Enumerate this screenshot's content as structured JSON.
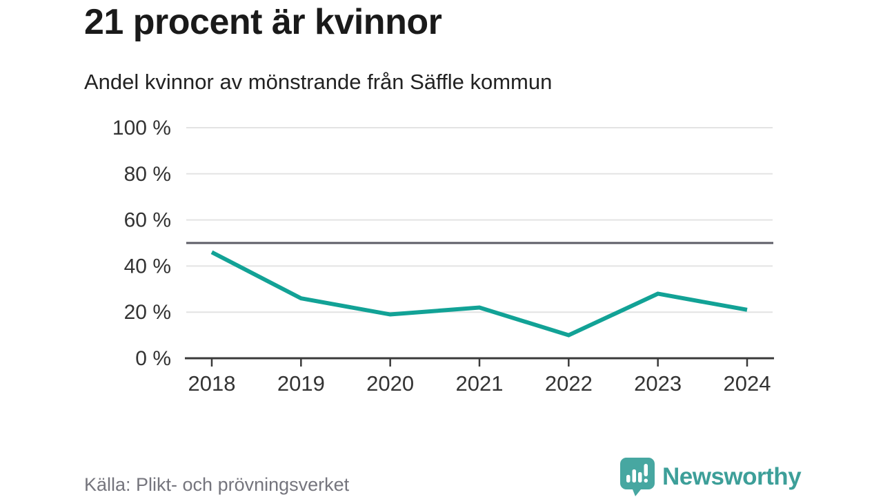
{
  "chart_data": {
    "type": "line",
    "title": "21 procent är kvinnor",
    "subtitle": "Andel kvinnor av mönstrande från Säffle kommun",
    "x_labels": [
      "2018",
      "2019",
      "2020",
      "2021",
      "2022",
      "2023",
      "2024"
    ],
    "series": [
      {
        "name": "Andel kvinnor av mönstrande",
        "values": [
          46,
          26,
          19,
          22,
          10,
          28,
          21
        ],
        "unit": "%"
      }
    ],
    "ylim": [
      0,
      100
    ],
    "y_ticks": [
      0,
      20,
      40,
      60,
      80,
      100
    ],
    "y_tick_labels": [
      "0 %",
      "20 %",
      "40 %",
      "60 %",
      "80 %",
      "100 %"
    ],
    "reference_line_y": 50,
    "grid": true,
    "legend": "none",
    "source": "Källa: Plikt- och prövningsverket"
  },
  "branding": {
    "wordmark": "Newsworthy",
    "logo_icon": "speech-bubble-with-bar-chart-and-exclamation"
  },
  "colors": {
    "accent": "#12a296",
    "reference_line": "#5c5c66",
    "gridline": "#e3e3e3",
    "axis": "#3a3a3a",
    "tick_text": "#333333",
    "title_text": "#1a1a1a",
    "muted_text": "#75757d",
    "brand_teal": "#3d9f99",
    "brand_icon_teal": "#47a7a1"
  }
}
